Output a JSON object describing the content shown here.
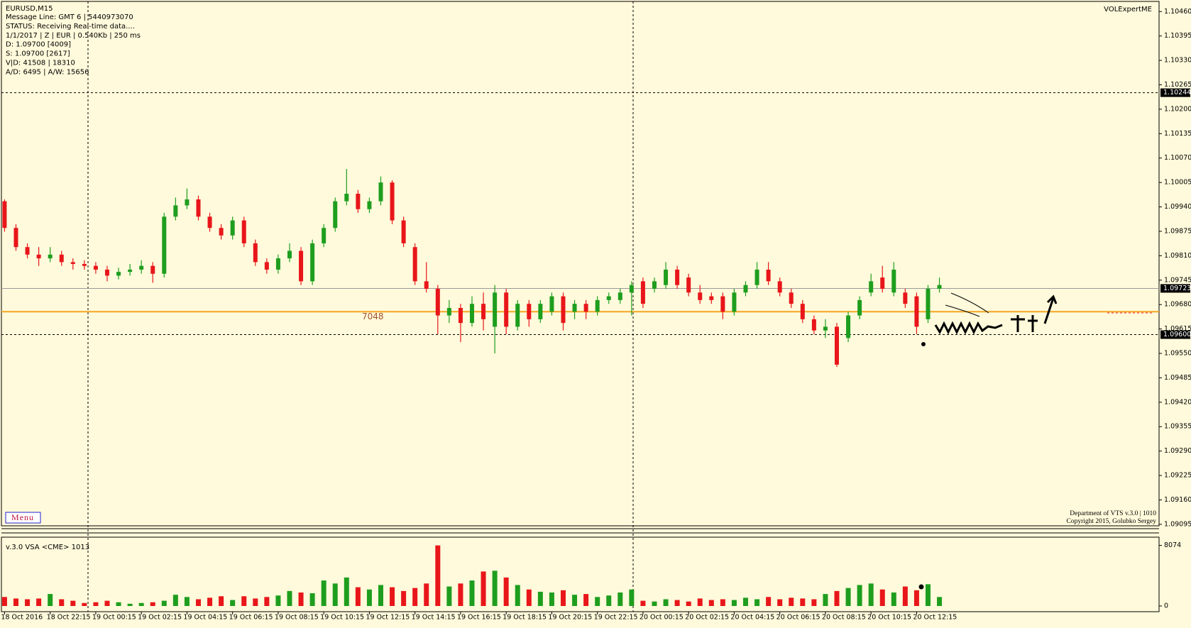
{
  "chart_data": {
    "type": "candlestick",
    "title": "EURUSD,M15",
    "info_lines": [
      "Message Line: GMT 6 | 5440973070",
      "STATUS:  Receiving Real-time data....",
      "1/1/2017 | Z | EUR | 0.540Kb | 250 ms",
      "D: 1.09700  [4009]",
      "S: 1.09700  [2617]",
      "V|D: 41508 | 18310",
      "A/D: 6495 | A/W: 15656"
    ],
    "indicator_name": "VOLExpertME",
    "menu": "Menu",
    "footer_lines": [
      "Department of VTS  v.3.0 | 1010",
      "Copyright 2015, Golubko Sergey"
    ],
    "up_color": "#1e9e1e",
    "down_color": "#e8161a",
    "categories": [
      "18 Oct 2016",
      null,
      null,
      null,
      "18 Oct 22:15",
      null,
      null,
      null,
      "19 Oct 00:15",
      null,
      null,
      null,
      "19 Oct 02:15",
      null,
      null,
      null,
      "19 Oct 04:15",
      null,
      null,
      null,
      "19 Oct 06:15",
      null,
      null,
      null,
      "19 Oct 08:15",
      null,
      null,
      null,
      "19 Oct 10:15",
      null,
      null,
      null,
      "19 Oct 12:15",
      null,
      null,
      null,
      "19 Oct 14:15",
      null,
      null,
      null,
      "19 Oct 16:15",
      null,
      null,
      null,
      "19 Oct 18:15",
      null,
      null,
      null,
      "19 Oct 20:15",
      null,
      null,
      null,
      "19 Oct 22:15",
      null,
      null,
      null,
      "20 Oct 00:15",
      null,
      null,
      null,
      "20 Oct 02:15",
      null,
      null,
      null,
      "20 Oct 04:15",
      null,
      null,
      null,
      "20 Oct 06:15",
      null,
      null,
      null,
      "20 Oct 08:15",
      null,
      null,
      null,
      "20 Oct 10:15",
      null,
      null,
      null,
      "20 Oct 12:15",
      null,
      null
    ],
    "open": [
      1.09955,
      1.09884,
      1.09833,
      1.09813,
      1.09803,
      1.09813,
      1.09793,
      1.09788,
      1.09783,
      1.09773,
      1.09757,
      1.09767,
      1.09773,
      1.09783,
      1.09762,
      1.09914,
      1.09944,
      1.0996,
      1.09914,
      1.09884,
      1.09864,
      1.09904,
      1.09843,
      1.09793,
      1.09773,
      1.09803,
      1.09823,
      1.09742,
      1.09843,
      1.09884,
      1.09955,
      1.09975,
      1.09934,
      1.09955,
      1.10005,
      1.09904,
      1.09833,
      1.09742,
      1.09722,
      1.09651,
      1.09671,
      1.09631,
      1.09682,
      1.09621,
      1.09712,
      1.09621,
      1.09682,
      1.09641,
      1.09661,
      1.09702,
      1.09661,
      1.09682,
      1.09661,
      1.09692,
      1.09692,
      1.09712,
      1.09742,
      1.09722,
      1.09732,
      1.09773,
      1.09752,
      1.09712,
      1.09702,
      1.09702,
      1.09661,
      1.09712,
      1.09732,
      1.09773,
      1.09742,
      1.09712,
      1.09682,
      1.09641,
      1.09611,
      1.09621,
      1.09591,
      1.09651,
      1.09712,
      1.09752,
      1.09712,
      1.09712,
      1.09702,
      1.09641,
      1.09722
    ],
    "high": [
      1.0996,
      1.09894,
      1.09843,
      1.09833,
      1.09833,
      1.09823,
      1.09803,
      1.09798,
      1.09793,
      1.09783,
      1.09778,
      1.09788,
      1.09798,
      1.09793,
      1.09924,
      1.09965,
      1.09989,
      1.0997,
      1.09924,
      1.09894,
      1.09914,
      1.09914,
      1.09853,
      1.09803,
      1.09813,
      1.09843,
      1.09833,
      1.09853,
      1.09894,
      1.09965,
      1.10041,
      1.09985,
      1.09965,
      1.10021,
      1.10011,
      1.09914,
      1.09843,
      1.09793,
      1.09732,
      1.09692,
      1.09682,
      1.09702,
      1.09712,
      1.09732,
      1.09722,
      1.09692,
      1.09692,
      1.09692,
      1.09712,
      1.09712,
      1.09692,
      1.09692,
      1.09702,
      1.09712,
      1.09722,
      1.09742,
      1.09752,
      1.09752,
      1.09793,
      1.09783,
      1.09762,
      1.09732,
      1.09712,
      1.09712,
      1.09722,
      1.09742,
      1.09793,
      1.09793,
      1.09752,
      1.09722,
      1.09692,
      1.09651,
      1.09641,
      1.09631,
      1.09661,
      1.09702,
      1.09762,
      1.09783,
      1.09793,
      1.09722,
      1.09712,
      1.09732,
      1.09752
    ],
    "low": [
      1.09874,
      1.09823,
      1.09803,
      1.09783,
      1.09793,
      1.09783,
      1.09773,
      1.09773,
      1.09762,
      1.09742,
      1.09747,
      1.09757,
      1.09762,
      1.09738,
      1.09752,
      1.09904,
      1.09934,
      1.09904,
      1.09874,
      1.09853,
      1.09853,
      1.09833,
      1.09783,
      1.09762,
      1.09762,
      1.09793,
      1.09732,
      1.09732,
      1.09833,
      1.09874,
      1.09944,
      1.09924,
      1.09924,
      1.09944,
      1.09894,
      1.09833,
      1.09732,
      1.09712,
      1.09601,
      1.09631,
      1.0958,
      1.09621,
      1.09611,
      1.0955,
      1.09601,
      1.09611,
      1.09621,
      1.09631,
      1.09651,
      1.09611,
      1.09641,
      1.09641,
      1.09651,
      1.09682,
      1.09682,
      1.09651,
      1.09671,
      1.09712,
      1.09722,
      1.09722,
      1.09702,
      1.09682,
      1.09682,
      1.09641,
      1.09651,
      1.09702,
      1.09722,
      1.09732,
      1.09702,
      1.09671,
      1.09631,
      1.09601,
      1.09591,
      1.09514,
      1.0958,
      1.09641,
      1.09702,
      1.09712,
      1.09702,
      1.09671,
      1.09601,
      1.09631,
      1.09712
    ],
    "close": [
      1.09884,
      1.09833,
      1.09813,
      1.09803,
      1.09813,
      1.09793,
      1.09788,
      1.09783,
      1.09773,
      1.09757,
      1.09767,
      1.09773,
      1.09783,
      1.09762,
      1.09914,
      1.09944,
      1.0996,
      1.09914,
      1.09884,
      1.09864,
      1.09904,
      1.09843,
      1.09793,
      1.09773,
      1.09803,
      1.09823,
      1.09742,
      1.09843,
      1.09884,
      1.09955,
      1.09975,
      1.09934,
      1.09955,
      1.10005,
      1.09904,
      1.09843,
      1.09742,
      1.09722,
      1.09651,
      1.09671,
      1.09631,
      1.09682,
      1.09641,
      1.09712,
      1.09621,
      1.09682,
      1.09641,
      1.09682,
      1.09702,
      1.09631,
      1.09682,
      1.09661,
      1.09692,
      1.09702,
      1.09712,
      1.09732,
      1.09682,
      1.09742,
      1.09773,
      1.09732,
      1.09712,
      1.09692,
      1.09692,
      1.09661,
      1.09712,
      1.09732,
      1.09773,
      1.09742,
      1.09712,
      1.09682,
      1.09641,
      1.09611,
      1.09621,
      1.0952,
      1.09651,
      1.09692,
      1.09742,
      1.09722,
      1.09773,
      1.09682,
      1.09621,
      1.09722,
      1.09732
    ],
    "ylim": [
      1.09091,
      1.10487
    ],
    "yticks": [
      {
        "value": 1.1046,
        "label": "1.10460"
      },
      1.10395,
      {
        "value": 1.1033,
        "label": "1.10330"
      },
      1.10265,
      {
        "value": 1.102,
        "label": "1.10200"
      },
      1.10135,
      {
        "value": 1.1007,
        "label": "1.10070"
      },
      1.10005,
      {
        "value": 1.0994,
        "label": "1.09940"
      },
      1.09875,
      {
        "value": 1.0981,
        "label": "1.09810"
      },
      1.09745,
      {
        "value": 1.0968,
        "label": "1.09680"
      },
      1.09615,
      {
        "value": 1.0955,
        "label": "1.09550"
      },
      1.09485,
      {
        "value": 1.0942,
        "label": "1.09420"
      },
      1.09355,
      {
        "value": 1.0929,
        "label": "1.09290"
      },
      1.09225,
      {
        "value": 1.0916,
        "label": "1.09160"
      },
      1.09095
    ],
    "bid": 1.09723,
    "price_lines": [
      1.10244,
      {
        "value": 1.096,
        "label": "1.09600"
      }
    ],
    "level_value": 1.09661,
    "level_color": "#f5a623",
    "level_label": 7048,
    "volume": {
      "title": "v.3.0 VSA <CME> 1013",
      "values": [
        1200,
        1000,
        900,
        1000,
        1600,
        900,
        700,
        400,
        500,
        700,
        500,
        300,
        400,
        500,
        700,
        1500,
        1200,
        900,
        1100,
        1300,
        800,
        1300,
        1000,
        1200,
        1400,
        2000,
        1800,
        1700,
        3400,
        3000,
        3800,
        2500,
        2200,
        2800,
        2500,
        2000,
        2400,
        3000,
        8074,
        2600,
        3000,
        3400,
        4600,
        4700,
        3800,
        2800,
        2200,
        1900,
        1800,
        2100,
        1500,
        1600,
        1200,
        1400,
        1800,
        2200,
        700,
        600,
        900,
        800,
        600,
        1000,
        800,
        900,
        800,
        1100,
        900,
        1200,
        900,
        1100,
        1000,
        900,
        1600,
        2000,
        2400,
        2800,
        3000,
        2200,
        1800,
        2600,
        2100,
        2900,
        1200
      ],
      "ylim": [
        0,
        8700
      ],
      "yticks": [
        0,
        8074
      ]
    }
  }
}
